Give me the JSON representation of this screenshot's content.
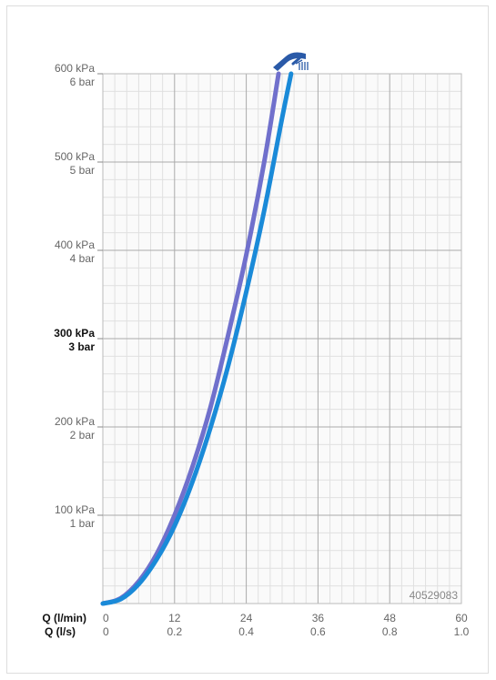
{
  "chart_data": {
    "type": "line",
    "title": "",
    "product_code": "40529083",
    "icon": "shower-head-icon",
    "grid": true,
    "x_axis_primary": {
      "label": "Q (l/min)",
      "range": [
        0,
        60
      ],
      "ticks": [
        {
          "value": 0,
          "label": "0"
        },
        {
          "value": 12,
          "label": "12"
        },
        {
          "value": 24,
          "label": "24"
        },
        {
          "value": 36,
          "label": "36"
        },
        {
          "value": 48,
          "label": "48"
        },
        {
          "value": 60,
          "label": "60"
        }
      ]
    },
    "x_axis_secondary": {
      "label": "Q (l/s)",
      "range": [
        0,
        1.0
      ],
      "ticks": [
        {
          "value": 0,
          "label": "0"
        },
        {
          "value": 0.2,
          "label": "0.2"
        },
        {
          "value": 0.4,
          "label": "0.4"
        },
        {
          "value": 0.6,
          "label": "0.6"
        },
        {
          "value": 0.8,
          "label": "0.8"
        },
        {
          "value": 1.0,
          "label": "1.0"
        }
      ]
    },
    "y_axis": {
      "range": [
        0,
        600
      ],
      "unit": "kPa",
      "ticks": [
        {
          "value": 600,
          "kpa": "600 kPa",
          "bar": "6 bar",
          "bold": false
        },
        {
          "value": 500,
          "kpa": "500 kPa",
          "bar": "5 bar",
          "bold": false
        },
        {
          "value": 400,
          "kpa": "400 kPa",
          "bar": "4 bar",
          "bold": false
        },
        {
          "value": 300,
          "kpa": "300 kPa",
          "bar": "3 bar",
          "bold": true
        },
        {
          "value": 200,
          "kpa": "200 kPa",
          "bar": "2 bar",
          "bold": false
        },
        {
          "value": 100,
          "kpa": "100 kPa",
          "bar": "1 bar",
          "bold": false
        }
      ]
    },
    "series": [
      {
        "color": "#7070cc",
        "x": [
          0,
          3,
          6,
          9,
          12,
          15,
          18,
          21,
          24,
          27,
          29.4
        ],
        "y": [
          0,
          6,
          25,
          56,
          100,
          155,
          222,
          305,
          395,
          500,
          600
        ]
      },
      {
        "color": "#1a8ad8",
        "x": [
          0,
          3,
          6,
          9,
          12,
          15,
          18,
          21,
          24,
          27,
          30,
          31.5
        ],
        "y": [
          0,
          5,
          22,
          50,
          88,
          138,
          199,
          270,
          353,
          445,
          550,
          600
        ]
      }
    ]
  }
}
